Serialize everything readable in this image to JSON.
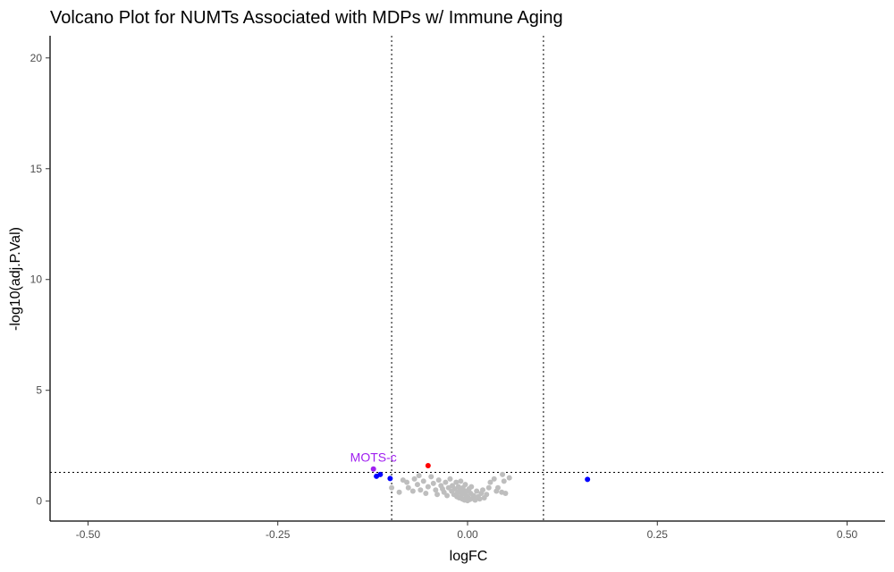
{
  "chart_data": {
    "type": "scatter",
    "title": "Volcano Plot for NUMTs Associated with MDPs w/ Immune Aging",
    "xlabel": "logFC",
    "ylabel": "-log10(adj.P.Val)",
    "xlim": [
      -0.55,
      0.55
    ],
    "ylim": [
      -0.9,
      21
    ],
    "xticks": [
      -0.5,
      -0.25,
      0.0,
      0.25,
      0.5
    ],
    "xtick_labels": [
      "-0.50",
      "-0.25",
      "0.00",
      "0.25",
      "0.50"
    ],
    "yticks": [
      0,
      5,
      10,
      15,
      20
    ],
    "ytick_labels": [
      "0",
      "5",
      "10",
      "15",
      "20"
    ],
    "grid": false,
    "reference_lines": {
      "vertical": [
        -0.1,
        0.1
      ],
      "horizontal": [
        1.3
      ]
    },
    "series": [
      {
        "color": "#BEBEBE",
        "points": [
          [
            -0.085,
            0.95
          ],
          [
            -0.078,
            0.6
          ],
          [
            -0.072,
            0.45
          ],
          [
            -0.07,
            1.0
          ],
          [
            -0.066,
            0.75
          ],
          [
            -0.062,
            0.5
          ],
          [
            -0.058,
            0.9
          ],
          [
            -0.055,
            0.35
          ],
          [
            -0.052,
            0.65
          ],
          [
            -0.048,
            1.1
          ],
          [
            -0.045,
            0.8
          ],
          [
            -0.042,
            0.5
          ],
          [
            -0.04,
            0.3
          ],
          [
            -0.038,
            0.95
          ],
          [
            -0.035,
            0.7
          ],
          [
            -0.033,
            0.55
          ],
          [
            -0.031,
            0.4
          ],
          [
            -0.029,
            0.85
          ],
          [
            -0.027,
            0.25
          ],
          [
            -0.025,
            0.6
          ],
          [
            -0.023,
            1.0
          ],
          [
            -0.021,
            0.45
          ],
          [
            -0.02,
            0.7
          ],
          [
            -0.018,
            0.3
          ],
          [
            -0.017,
            0.55
          ],
          [
            -0.015,
            0.85
          ],
          [
            -0.014,
            0.2
          ],
          [
            -0.013,
            0.4
          ],
          [
            -0.012,
            0.65
          ],
          [
            -0.011,
            0.15
          ],
          [
            -0.01,
            0.5
          ],
          [
            -0.009,
            0.9
          ],
          [
            -0.008,
            0.3
          ],
          [
            -0.007,
            0.1
          ],
          [
            -0.006,
            0.6
          ],
          [
            -0.005,
            0.4
          ],
          [
            -0.004,
            0.05
          ],
          [
            -0.003,
            0.75
          ],
          [
            -0.002,
            0.25
          ],
          [
            -0.001,
            0.45
          ],
          [
            0.0,
            0.02
          ],
          [
            0.001,
            0.15
          ],
          [
            0.002,
            0.55
          ],
          [
            0.003,
            0.08
          ],
          [
            0.004,
            0.35
          ],
          [
            0.005,
            0.65
          ],
          [
            0.006,
            0.12
          ],
          [
            0.008,
            0.25
          ],
          [
            0.01,
            0.05
          ],
          [
            0.012,
            0.45
          ],
          [
            0.014,
            0.2
          ],
          [
            0.016,
            0.1
          ],
          [
            0.018,
            0.35
          ],
          [
            0.02,
            0.5
          ],
          [
            0.022,
            0.15
          ],
          [
            0.025,
            0.3
          ],
          [
            0.028,
            0.6
          ],
          [
            0.03,
            0.85
          ],
          [
            0.035,
            1.0
          ],
          [
            0.038,
            0.45
          ],
          [
            0.04,
            0.6
          ],
          [
            0.045,
            0.4
          ],
          [
            0.046,
            1.2
          ],
          [
            0.048,
            0.9
          ],
          [
            0.05,
            0.35
          ],
          [
            0.055,
            1.05
          ],
          [
            -0.1,
            0.6
          ],
          [
            -0.09,
            0.4
          ],
          [
            -0.08,
            0.85
          ],
          [
            -0.064,
            1.15
          ]
        ]
      },
      {
        "color": "#0000FF",
        "points": [
          [
            -0.12,
            1.12
          ],
          [
            -0.115,
            1.2
          ],
          [
            -0.102,
            1.02
          ],
          [
            0.158,
            0.98
          ]
        ]
      },
      {
        "color": "#FF0000",
        "points": [
          [
            -0.052,
            1.6
          ]
        ]
      },
      {
        "color": "#A020F0",
        "points": [
          [
            -0.124,
            1.45
          ]
        ]
      }
    ],
    "annotations": [
      {
        "text": "MOTS-c",
        "x": -0.124,
        "y": 1.45,
        "color": "#A020F0"
      }
    ]
  }
}
